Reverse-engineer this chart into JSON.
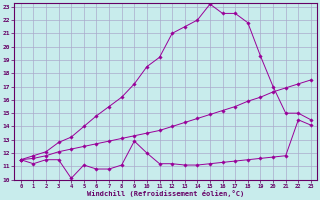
{
  "xlabel": "Windchill (Refroidissement éolien,°C)",
  "bg_color": "#c8ecec",
  "line_color": "#990099",
  "grid_color": "#aaaacc",
  "xlim": [
    0,
    23
  ],
  "ylim": [
    10,
    23
  ],
  "x_ticks": [
    0,
    1,
    2,
    3,
    4,
    5,
    6,
    7,
    8,
    9,
    10,
    11,
    12,
    13,
    14,
    15,
    16,
    17,
    18,
    19,
    20,
    21,
    22,
    23
  ],
  "y_ticks": [
    10,
    11,
    12,
    13,
    14,
    15,
    16,
    17,
    18,
    19,
    20,
    21,
    22,
    23
  ],
  "line1_x": [
    0,
    1,
    2,
    3,
    4,
    5,
    6,
    7,
    8,
    9,
    10,
    11,
    12,
    13,
    14,
    15,
    16,
    17,
    18,
    19,
    20,
    21,
    22,
    23
  ],
  "line1_y": [
    11.5,
    11.2,
    11.5,
    11.5,
    10.1,
    11.1,
    10.8,
    10.8,
    11.1,
    12.9,
    12.0,
    11.2,
    11.2,
    11.1,
    11.1,
    11.2,
    11.3,
    11.4,
    11.5,
    11.6,
    11.7,
    11.8,
    14.5,
    14.1
  ],
  "line2_x": [
    0,
    1,
    2,
    3,
    4,
    5,
    6,
    7,
    8,
    9,
    10,
    11,
    12,
    13,
    14,
    15,
    16,
    17,
    18,
    19,
    20,
    21,
    22,
    23
  ],
  "line2_y": [
    11.5,
    11.6,
    11.8,
    12.1,
    12.3,
    12.5,
    12.7,
    12.9,
    13.1,
    13.3,
    13.5,
    13.7,
    14.0,
    14.3,
    14.6,
    14.9,
    15.2,
    15.5,
    15.9,
    16.2,
    16.6,
    16.9,
    17.2,
    17.5
  ],
  "line3_x": [
    0,
    1,
    2,
    3,
    4,
    5,
    6,
    7,
    8,
    9,
    10,
    11,
    12,
    13,
    14,
    15,
    16,
    17,
    18,
    19,
    20,
    21,
    22,
    23
  ],
  "line3_y": [
    11.5,
    11.8,
    12.1,
    12.8,
    13.2,
    14.0,
    14.8,
    15.5,
    16.2,
    17.2,
    18.5,
    19.2,
    21.0,
    21.5,
    22.0,
    23.2,
    22.5,
    22.5,
    21.8,
    19.3,
    17.0,
    15.0,
    15.0,
    14.5
  ]
}
